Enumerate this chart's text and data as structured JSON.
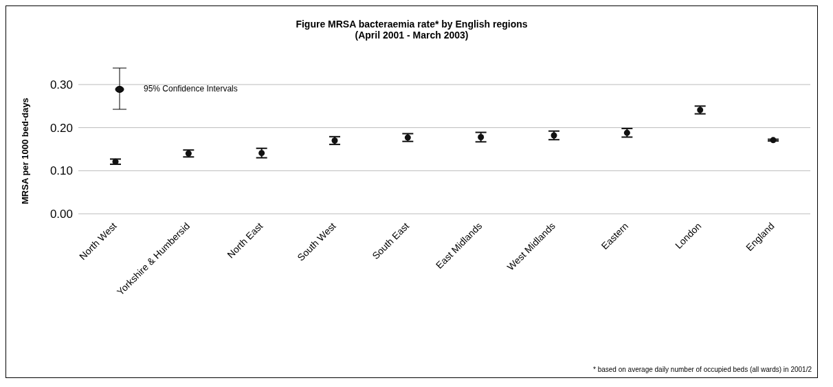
{
  "chart_data": {
    "type": "scatter",
    "title": "Figure MRSA bacteraemia rate* by English regions",
    "subtitle": "(April 2001 - March 2003)",
    "ylabel": "MRSA per 1000 bed-days",
    "categories": [
      "North West",
      "Yorkshire & Humbersid",
      "North East",
      "South West",
      "South East",
      "East Midlands",
      "West Midlands",
      "Eastern",
      "London",
      "England"
    ],
    "series": [
      {
        "name": "95% Confidence Intervals",
        "color": "#111111",
        "values": [
          0.121,
          0.14,
          0.141,
          0.17,
          0.177,
          0.178,
          0.182,
          0.188,
          0.241,
          0.171
        ],
        "errors": [
          0.006,
          0.008,
          0.011,
          0.009,
          0.009,
          0.011,
          0.01,
          0.01,
          0.009,
          0.002
        ]
      }
    ],
    "ylim": [
      0,
      0.3
    ],
    "yticks": [
      {
        "value": 0,
        "label": "0.00"
      },
      {
        "value": 0.1,
        "label": "0.10"
      },
      {
        "value": 0.2,
        "label": "0.20"
      },
      {
        "value": 0.3,
        "label": "0.30"
      }
    ],
    "grid": "y",
    "legend": "top left",
    "marker": "circle",
    "annotations": [
      "* based on average daily number of occupied beds (all wards) in 2001/2"
    ]
  }
}
